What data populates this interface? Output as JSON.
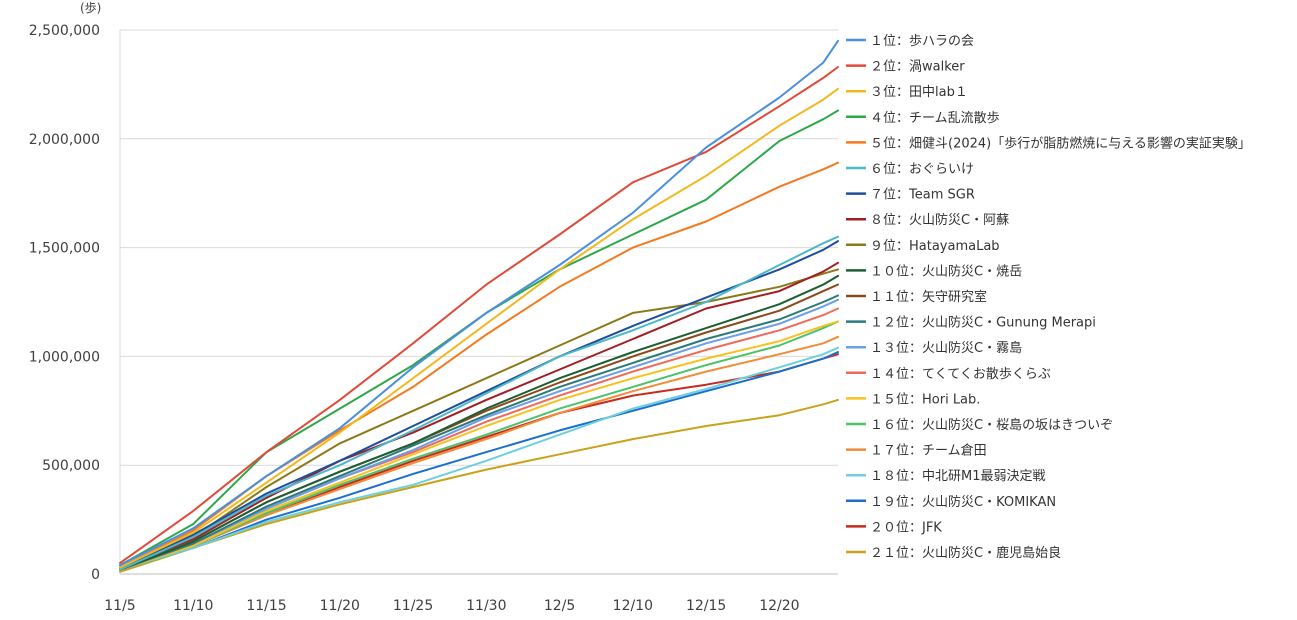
{
  "chart_data": {
    "type": "line",
    "title": "",
    "xlabel": "",
    "ylabel": "(歩)",
    "y_tick_labels": [
      "0",
      "500,000",
      "1,000,000",
      "1,500,000",
      "2,000,000",
      "2,500,000"
    ],
    "y_ticks": [
      0,
      500000,
      1000000,
      1500000,
      2000000,
      2500000
    ],
    "ylim": [
      0,
      2500000
    ],
    "x_tick_labels": [
      "11/5",
      "11/10",
      "11/15",
      "11/20",
      "11/25",
      "11/30",
      "12/5",
      "12/10",
      "12/15",
      "12/20"
    ],
    "x_range_days": [
      "11/5",
      "12/20"
    ],
    "grid": "horizontal",
    "legend_position": "right",
    "series": [
      {
        "name": "１位：歩ハラの会",
        "color": "#4a8fe0",
        "values": [
          [
            0,
            40000
          ],
          [
            5,
            210000
          ],
          [
            10,
            450000
          ],
          [
            15,
            670000
          ],
          [
            20,
            950000
          ],
          [
            25,
            1200000
          ],
          [
            30,
            1420000
          ],
          [
            35,
            1660000
          ],
          [
            40,
            1960000
          ],
          [
            45,
            2190000
          ],
          [
            48,
            2350000
          ],
          [
            49,
            2450000
          ]
        ]
      },
      {
        "name": "２位：渦walker",
        "color": "#e04a3a",
        "values": [
          [
            0,
            50000
          ],
          [
            5,
            290000
          ],
          [
            10,
            560000
          ],
          [
            15,
            800000
          ],
          [
            20,
            1060000
          ],
          [
            25,
            1330000
          ],
          [
            30,
            1560000
          ],
          [
            35,
            1800000
          ],
          [
            40,
            1940000
          ],
          [
            45,
            2150000
          ],
          [
            48,
            2280000
          ],
          [
            49,
            2330000
          ]
        ]
      },
      {
        "name": "３位：田中lab１",
        "color": "#f2b81e",
        "values": [
          [
            0,
            30000
          ],
          [
            5,
            190000
          ],
          [
            10,
            420000
          ],
          [
            15,
            650000
          ],
          [
            20,
            900000
          ],
          [
            25,
            1150000
          ],
          [
            30,
            1400000
          ],
          [
            35,
            1630000
          ],
          [
            40,
            1830000
          ],
          [
            45,
            2060000
          ],
          [
            48,
            2180000
          ],
          [
            49,
            2230000
          ]
        ]
      },
      {
        "name": "４位：チーム乱流散歩",
        "color": "#2ea84a",
        "values": [
          [
            0,
            40000
          ],
          [
            5,
            230000
          ],
          [
            10,
            560000
          ],
          [
            15,
            760000
          ],
          [
            20,
            960000
          ],
          [
            25,
            1200000
          ],
          [
            30,
            1400000
          ],
          [
            35,
            1560000
          ],
          [
            40,
            1720000
          ],
          [
            45,
            1990000
          ],
          [
            48,
            2090000
          ],
          [
            49,
            2130000
          ]
        ]
      },
      {
        "name": "５位：畑健斗(2024)「歩行が脂肪燃焼に与える影響の実証実験」",
        "color": "#f47a20",
        "values": [
          [
            0,
            30000
          ],
          [
            5,
            200000
          ],
          [
            10,
            450000
          ],
          [
            15,
            660000
          ],
          [
            20,
            860000
          ],
          [
            25,
            1100000
          ],
          [
            30,
            1320000
          ],
          [
            35,
            1500000
          ],
          [
            40,
            1620000
          ],
          [
            45,
            1780000
          ],
          [
            48,
            1860000
          ],
          [
            49,
            1890000
          ]
        ]
      },
      {
        "name": "６位：おぐらいけ",
        "color": "#4db8c8",
        "values": [
          [
            0,
            20000
          ],
          [
            5,
            170000
          ],
          [
            10,
            360000
          ],
          [
            15,
            500000
          ],
          [
            20,
            660000
          ],
          [
            25,
            830000
          ],
          [
            30,
            1000000
          ],
          [
            35,
            1120000
          ],
          [
            40,
            1250000
          ],
          [
            45,
            1420000
          ],
          [
            48,
            1520000
          ],
          [
            49,
            1550000
          ]
        ]
      },
      {
        "name": "７位：Team SGR",
        "color": "#1f4e9c",
        "values": [
          [
            0,
            30000
          ],
          [
            5,
            180000
          ],
          [
            10,
            370000
          ],
          [
            15,
            520000
          ],
          [
            20,
            680000
          ],
          [
            25,
            840000
          ],
          [
            30,
            1000000
          ],
          [
            35,
            1140000
          ],
          [
            40,
            1270000
          ],
          [
            45,
            1400000
          ],
          [
            48,
            1490000
          ],
          [
            49,
            1530000
          ]
        ]
      },
      {
        "name": "８位：火山防災C・阿蘇",
        "color": "#a31f24",
        "values": [
          [
            0,
            30000
          ],
          [
            5,
            160000
          ],
          [
            10,
            350000
          ],
          [
            15,
            520000
          ],
          [
            20,
            650000
          ],
          [
            25,
            800000
          ],
          [
            30,
            940000
          ],
          [
            35,
            1080000
          ],
          [
            40,
            1220000
          ],
          [
            45,
            1300000
          ],
          [
            48,
            1390000
          ],
          [
            49,
            1430000
          ]
        ]
      },
      {
        "name": "９位：HatayamaLab",
        "color": "#8c7a1a",
        "values": [
          [
            0,
            30000
          ],
          [
            5,
            170000
          ],
          [
            10,
            400000
          ],
          [
            15,
            600000
          ],
          [
            20,
            750000
          ],
          [
            25,
            900000
          ],
          [
            30,
            1050000
          ],
          [
            35,
            1200000
          ],
          [
            40,
            1250000
          ],
          [
            45,
            1320000
          ],
          [
            48,
            1380000
          ],
          [
            49,
            1400000
          ]
        ]
      },
      {
        "name": "１０位：火山防災C・焼岳",
        "color": "#1d5e35",
        "values": [
          [
            0,
            20000
          ],
          [
            5,
            150000
          ],
          [
            10,
            330000
          ],
          [
            15,
            470000
          ],
          [
            20,
            600000
          ],
          [
            25,
            760000
          ],
          [
            30,
            900000
          ],
          [
            35,
            1020000
          ],
          [
            40,
            1130000
          ],
          [
            45,
            1240000
          ],
          [
            48,
            1330000
          ],
          [
            49,
            1370000
          ]
        ]
      },
      {
        "name": "１１位：矢守研究室",
        "color": "#8c4a1a",
        "values": [
          [
            0,
            20000
          ],
          [
            5,
            150000
          ],
          [
            10,
            330000
          ],
          [
            15,
            470000
          ],
          [
            20,
            600000
          ],
          [
            25,
            750000
          ],
          [
            30,
            880000
          ],
          [
            35,
            1000000
          ],
          [
            40,
            1110000
          ],
          [
            45,
            1210000
          ],
          [
            48,
            1300000
          ],
          [
            49,
            1330000
          ]
        ]
      },
      {
        "name": "１２位：火山防災C・Gunung Merapi",
        "color": "#2c7a7a",
        "values": [
          [
            0,
            20000
          ],
          [
            5,
            140000
          ],
          [
            10,
            310000
          ],
          [
            15,
            450000
          ],
          [
            20,
            590000
          ],
          [
            25,
            730000
          ],
          [
            30,
            860000
          ],
          [
            35,
            970000
          ],
          [
            40,
            1080000
          ],
          [
            45,
            1170000
          ],
          [
            48,
            1250000
          ],
          [
            49,
            1280000
          ]
        ]
      },
      {
        "name": "１３位：火山防災C・霧島",
        "color": "#6a9ee8",
        "values": [
          [
            0,
            20000
          ],
          [
            5,
            140000
          ],
          [
            10,
            300000
          ],
          [
            15,
            440000
          ],
          [
            20,
            570000
          ],
          [
            25,
            720000
          ],
          [
            30,
            840000
          ],
          [
            35,
            950000
          ],
          [
            40,
            1060000
          ],
          [
            45,
            1150000
          ],
          [
            48,
            1230000
          ],
          [
            49,
            1260000
          ]
        ]
      },
      {
        "name": "１４位：てくてくお散歩くらぶ",
        "color": "#ee6a5a",
        "values": [
          [
            0,
            20000
          ],
          [
            5,
            140000
          ],
          [
            10,
            300000
          ],
          [
            15,
            440000
          ],
          [
            20,
            560000
          ],
          [
            25,
            700000
          ],
          [
            30,
            820000
          ],
          [
            35,
            930000
          ],
          [
            40,
            1030000
          ],
          [
            45,
            1120000
          ],
          [
            48,
            1190000
          ],
          [
            49,
            1220000
          ]
        ]
      },
      {
        "name": "１５位：Hori Lab.",
        "color": "#f7c21e",
        "values": [
          [
            0,
            20000
          ],
          [
            5,
            130000
          ],
          [
            10,
            290000
          ],
          [
            15,
            420000
          ],
          [
            20,
            550000
          ],
          [
            25,
            680000
          ],
          [
            30,
            800000
          ],
          [
            35,
            900000
          ],
          [
            40,
            990000
          ],
          [
            45,
            1070000
          ],
          [
            48,
            1140000
          ],
          [
            49,
            1160000
          ]
        ]
      },
      {
        "name": "１６位：火山防災C・桜島の坂はきついぞ",
        "color": "#4cc26a",
        "values": [
          [
            0,
            20000
          ],
          [
            5,
            130000
          ],
          [
            10,
            280000
          ],
          [
            15,
            410000
          ],
          [
            20,
            530000
          ],
          [
            25,
            640000
          ],
          [
            30,
            760000
          ],
          [
            35,
            860000
          ],
          [
            40,
            960000
          ],
          [
            45,
            1050000
          ],
          [
            48,
            1130000
          ],
          [
            49,
            1160000
          ]
        ]
      },
      {
        "name": "１７位：チーム倉田",
        "color": "#f08c3a",
        "values": [
          [
            0,
            20000
          ],
          [
            5,
            130000
          ],
          [
            10,
            270000
          ],
          [
            15,
            390000
          ],
          [
            20,
            510000
          ],
          [
            25,
            620000
          ],
          [
            30,
            740000
          ],
          [
            35,
            840000
          ],
          [
            40,
            930000
          ],
          [
            45,
            1010000
          ],
          [
            48,
            1060000
          ],
          [
            49,
            1090000
          ]
        ]
      },
      {
        "name": "１８位：中北研M1最弱決定戦",
        "color": "#6fcfdc",
        "values": [
          [
            0,
            20000
          ],
          [
            5,
            120000
          ],
          [
            10,
            240000
          ],
          [
            15,
            330000
          ],
          [
            20,
            410000
          ],
          [
            25,
            520000
          ],
          [
            30,
            640000
          ],
          [
            35,
            760000
          ],
          [
            40,
            850000
          ],
          [
            45,
            950000
          ],
          [
            48,
            1010000
          ],
          [
            49,
            1040000
          ]
        ]
      },
      {
        "name": "１９位：火山防災C・KOMIKAN",
        "color": "#1a6fd0",
        "values": [
          [
            0,
            20000
          ],
          [
            5,
            120000
          ],
          [
            10,
            250000
          ],
          [
            15,
            350000
          ],
          [
            20,
            460000
          ],
          [
            25,
            560000
          ],
          [
            30,
            660000
          ],
          [
            35,
            750000
          ],
          [
            40,
            840000
          ],
          [
            45,
            930000
          ],
          [
            48,
            990000
          ],
          [
            49,
            1020000
          ]
        ]
      },
      {
        "name": "２０位：JFK",
        "color": "#c82a1e",
        "values": [
          [
            0,
            20000
          ],
          [
            5,
            130000
          ],
          [
            10,
            270000
          ],
          [
            15,
            400000
          ],
          [
            20,
            520000
          ],
          [
            25,
            630000
          ],
          [
            30,
            740000
          ],
          [
            35,
            820000
          ],
          [
            40,
            870000
          ],
          [
            45,
            930000
          ],
          [
            48,
            990000
          ],
          [
            49,
            1010000
          ]
        ]
      },
      {
        "name": "２１位：火山防災C・鹿児島始良",
        "color": "#c9a21a",
        "values": [
          [
            0,
            10000
          ],
          [
            5,
            120000
          ],
          [
            10,
            230000
          ],
          [
            15,
            320000
          ],
          [
            20,
            400000
          ],
          [
            25,
            480000
          ],
          [
            30,
            550000
          ],
          [
            35,
            620000
          ],
          [
            40,
            680000
          ],
          [
            45,
            730000
          ],
          [
            48,
            780000
          ],
          [
            49,
            800000
          ]
        ]
      }
    ]
  }
}
